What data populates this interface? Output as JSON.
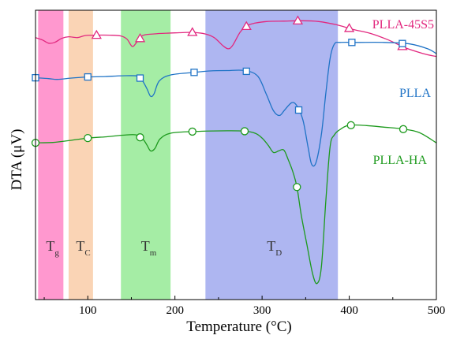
{
  "chart_data": {
    "type": "line",
    "title": "",
    "xlabel": "Temperature (°C)",
    "ylabel": "DTA (μV)",
    "xlim": [
      40,
      500
    ],
    "x_ticks": [
      100,
      200,
      300,
      400,
      500
    ],
    "y_ticks_shown": false,
    "legend": "labels placed at right next to each curve",
    "regions": [
      {
        "label": "T",
        "sub": "g",
        "x_start": 43,
        "x_end": 72,
        "color": "#ff7ec3"
      },
      {
        "label": "T",
        "sub": "C",
        "x_start": 78,
        "x_end": 106,
        "color": "#f9c9a3"
      },
      {
        "label": "T",
        "sub": "m",
        "x_start": 138,
        "x_end": 195,
        "color": "#8fe98f"
      },
      {
        "label": "T",
        "sub": "D",
        "x_start": 235,
        "x_end": 387,
        "color": "#9aa4ee"
      }
    ],
    "series": [
      {
        "name": "PLLA-45S5",
        "color": "#e2287f",
        "marker": "triangle",
        "points": [
          [
            40,
            6.6
          ],
          [
            48,
            6.3
          ],
          [
            55,
            5.9
          ],
          [
            62,
            6.0
          ],
          [
            70,
            6.5
          ],
          [
            78,
            6.7
          ],
          [
            88,
            6.6
          ],
          [
            97,
            6.85
          ],
          [
            110,
            6.9
          ],
          [
            125,
            6.9
          ],
          [
            138,
            6.8
          ],
          [
            145,
            6.4
          ],
          [
            151,
            5.5
          ],
          [
            156,
            6.0
          ],
          [
            163,
            6.85
          ],
          [
            175,
            7.05
          ],
          [
            190,
            7.15
          ],
          [
            205,
            7.2
          ],
          [
            220,
            7.25
          ],
          [
            235,
            7.05
          ],
          [
            245,
            6.6
          ],
          [
            255,
            5.6
          ],
          [
            261,
            5.2
          ],
          [
            266,
            5.6
          ],
          [
            275,
            7.3
          ],
          [
            283,
            8.1
          ],
          [
            292,
            8.4
          ],
          [
            305,
            8.6
          ],
          [
            325,
            8.65
          ],
          [
            345,
            8.7
          ],
          [
            365,
            8.6
          ],
          [
            385,
            8.2
          ],
          [
            405,
            7.6
          ],
          [
            425,
            7.1
          ],
          [
            445,
            6.3
          ],
          [
            465,
            5.3
          ],
          [
            485,
            4.6
          ],
          [
            495,
            4.35
          ],
          [
            500,
            4.25
          ]
        ],
        "marker_x": [
          110,
          160,
          220,
          282,
          341,
          400,
          461
        ]
      },
      {
        "name": "PLLA",
        "color": "#1f73c6",
        "marker": "square",
        "points": [
          [
            40,
            1.6
          ],
          [
            55,
            1.5
          ],
          [
            65,
            1.4
          ],
          [
            80,
            1.55
          ],
          [
            100,
            1.7
          ],
          [
            120,
            1.75
          ],
          [
            140,
            1.85
          ],
          [
            158,
            1.8
          ],
          [
            163,
            1.2
          ],
          [
            168,
            0.2
          ],
          [
            172,
            -0.7
          ],
          [
            176,
            -0.4
          ],
          [
            182,
            1.2
          ],
          [
            195,
            1.95
          ],
          [
            220,
            2.25
          ],
          [
            240,
            2.45
          ],
          [
            260,
            2.5
          ],
          [
            280,
            2.5
          ],
          [
            295,
            1.8
          ],
          [
            305,
            -0.5
          ],
          [
            313,
            -2.5
          ],
          [
            320,
            -3.1
          ],
          [
            326,
            -2.4
          ],
          [
            334,
            -1.5
          ],
          [
            340,
            -1.9
          ],
          [
            347,
            -3.7
          ],
          [
            353,
            -7.2
          ],
          [
            357,
            -9.2
          ],
          [
            362,
            -8.9
          ],
          [
            368,
            -5.5
          ],
          [
            373,
            -0.5
          ],
          [
            378,
            4.0
          ],
          [
            383,
            5.8
          ],
          [
            390,
            6.0
          ],
          [
            410,
            6.0
          ],
          [
            440,
            6.0
          ],
          [
            470,
            5.8
          ],
          [
            490,
            5.2
          ],
          [
            500,
            4.6
          ]
        ],
        "marker_x": [
          40,
          100,
          160,
          222,
          282,
          342,
          403,
          461
        ]
      },
      {
        "name": "PLLA-HA",
        "color": "#1d9a1d",
        "marker": "circle",
        "points": [
          [
            40,
            -6.5
          ],
          [
            60,
            -6.45
          ],
          [
            80,
            -6.2
          ],
          [
            100,
            -5.9
          ],
          [
            120,
            -5.75
          ],
          [
            140,
            -5.55
          ],
          [
            155,
            -5.5
          ],
          [
            163,
            -6.0
          ],
          [
            168,
            -6.8
          ],
          [
            172,
            -7.5
          ],
          [
            177,
            -7.2
          ],
          [
            183,
            -6.0
          ],
          [
            195,
            -5.3
          ],
          [
            220,
            -5.1
          ],
          [
            260,
            -5.0
          ],
          [
            280,
            -5.05
          ],
          [
            292,
            -5.3
          ],
          [
            300,
            -5.9
          ],
          [
            307,
            -6.8
          ],
          [
            313,
            -7.7
          ],
          [
            319,
            -7.5
          ],
          [
            325,
            -7.4
          ],
          [
            330,
            -8.6
          ],
          [
            335,
            -10.0
          ],
          [
            340,
            -12.0
          ],
          [
            345,
            -15.5
          ],
          [
            352,
            -19.5
          ],
          [
            358,
            -22.8
          ],
          [
            363,
            -24.0
          ],
          [
            368,
            -22.0
          ],
          [
            373,
            -14.0
          ],
          [
            378,
            -7.0
          ],
          [
            383,
            -5.5
          ],
          [
            390,
            -4.8
          ],
          [
            400,
            -4.3
          ],
          [
            420,
            -4.35
          ],
          [
            440,
            -4.55
          ],
          [
            460,
            -4.75
          ],
          [
            480,
            -5.2
          ],
          [
            500,
            -6.5
          ]
        ],
        "marker_x": [
          40,
          100,
          160,
          220,
          280,
          340,
          402,
          462
        ]
      }
    ]
  }
}
